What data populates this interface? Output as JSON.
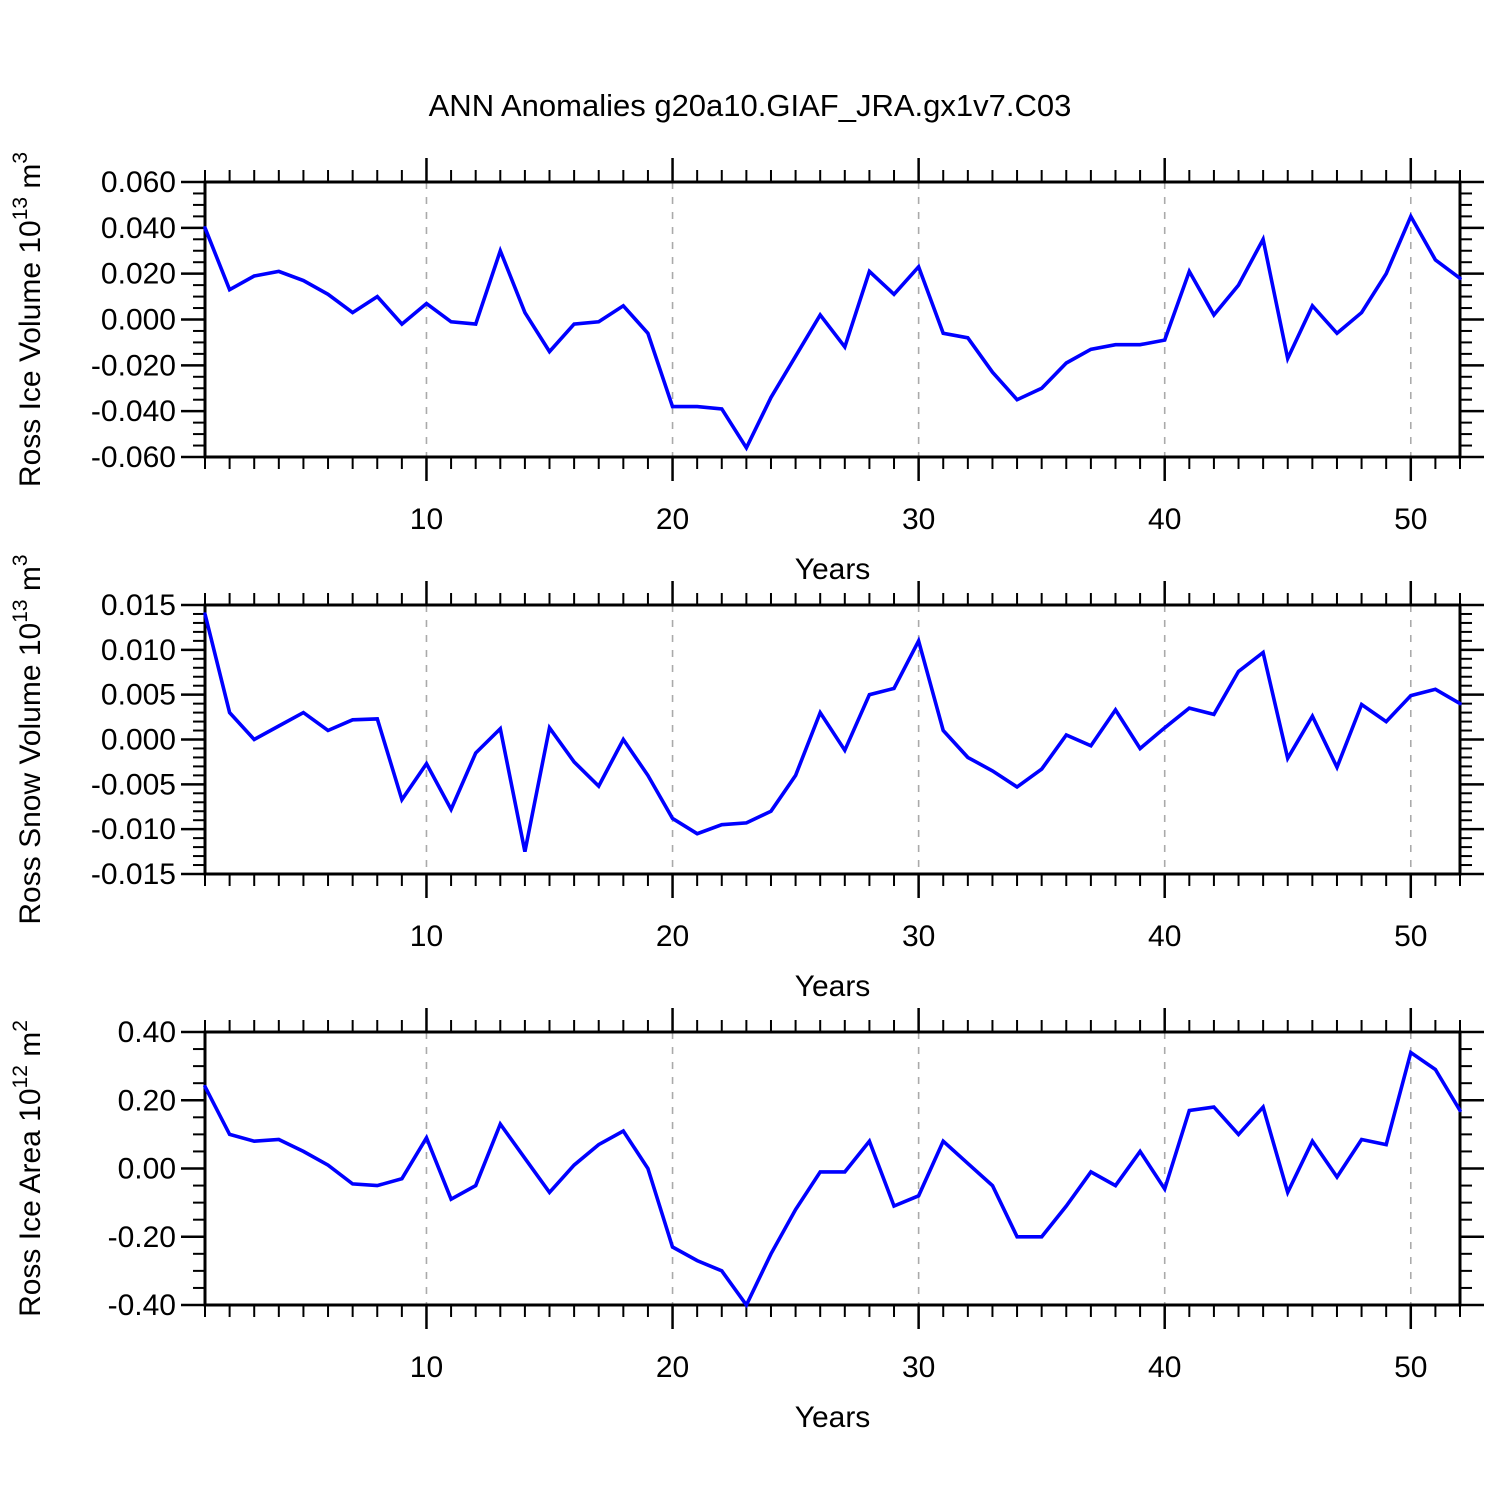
{
  "title": "ANN Anomalies g20a10.GIAF_JRA.gx1v7.C03",
  "xlabel": "Years",
  "style": {
    "line_color": "#0000ff",
    "axis_color": "#000000",
    "grid_color": "#aaaaaa"
  },
  "chart_data": [
    {
      "type": "line",
      "name": "ross-ice-volume",
      "ylabel_parts": [
        {
          "t": "Ross Ice Volume 10"
        },
        {
          "t": "13",
          "sup": true
        },
        {
          "t": " m"
        },
        {
          "t": "3",
          "sup": true
        }
      ],
      "xlabel": "Years",
      "x_start": 1,
      "x_end": 52,
      "x_step": 1,
      "x_major": [
        10,
        20,
        30,
        40,
        50
      ],
      "ylim": [
        -0.06,
        0.06
      ],
      "y_major": [
        0.06,
        0.04,
        0.02,
        0.0,
        -0.02,
        -0.04,
        -0.06
      ],
      "y_minor_step": 0.005,
      "y_decimals": 3,
      "grid": "dashed-vertical-at-x-majors",
      "values": [
        0.04,
        0.013,
        0.019,
        0.021,
        0.017,
        0.011,
        0.003,
        0.01,
        -0.002,
        0.007,
        -0.001,
        -0.002,
        0.03,
        0.003,
        -0.014,
        -0.002,
        -0.001,
        0.006,
        -0.006,
        -0.038,
        -0.038,
        -0.039,
        -0.056,
        -0.034,
        -0.016,
        0.002,
        -0.012,
        0.021,
        0.011,
        0.023,
        -0.006,
        -0.008,
        -0.023,
        -0.035,
        -0.03,
        -0.019,
        -0.013,
        -0.011,
        -0.011,
        -0.009,
        0.021,
        0.002,
        0.015,
        0.035,
        -0.017,
        0.006,
        -0.006,
        0.003,
        0.02,
        0.045,
        0.026,
        0.018
      ]
    },
    {
      "type": "line",
      "name": "ross-snow-volume",
      "ylabel_parts": [
        {
          "t": "Ross Snow Volume 10"
        },
        {
          "t": "13",
          "sup": true
        },
        {
          "t": " m"
        },
        {
          "t": "3",
          "sup": true
        }
      ],
      "xlabel": "Years",
      "x_start": 1,
      "x_end": 52,
      "x_step": 1,
      "x_major": [
        10,
        20,
        30,
        40,
        50
      ],
      "ylim": [
        -0.015,
        0.015
      ],
      "y_major": [
        0.015,
        0.01,
        0.005,
        0.0,
        -0.005,
        -0.01,
        -0.015
      ],
      "y_minor_step": 0.001,
      "y_decimals": 3,
      "grid": "dashed-vertical-at-x-majors",
      "values": [
        0.014,
        0.003,
        0.0,
        0.0015,
        0.003,
        0.001,
        0.0022,
        0.0023,
        -0.0067,
        -0.0027,
        -0.0078,
        -0.0015,
        0.0012,
        -0.0125,
        0.0013,
        -0.0025,
        -0.0052,
        0.0,
        -0.004,
        -0.0088,
        -0.0105,
        -0.0095,
        -0.0093,
        -0.008,
        -0.004,
        0.003,
        -0.0012,
        0.005,
        0.0057,
        0.011,
        0.001,
        -0.002,
        -0.0035,
        -0.0053,
        -0.0033,
        0.0005,
        -0.0007,
        0.0033,
        -0.001,
        0.0013,
        0.0035,
        0.0028,
        0.0076,
        0.0097,
        -0.0021,
        0.0026,
        -0.0031,
        0.0039,
        0.002,
        0.0049,
        0.0056,
        0.004
      ]
    },
    {
      "type": "line",
      "name": "ross-ice-area",
      "ylabel_parts": [
        {
          "t": "Ross Ice Area 10"
        },
        {
          "t": "12",
          "sup": true
        },
        {
          "t": " m"
        },
        {
          "t": "2",
          "sup": true
        }
      ],
      "xlabel": "Years",
      "x_start": 1,
      "x_end": 52,
      "x_step": 1,
      "x_major": [
        10,
        20,
        30,
        40,
        50
      ],
      "ylim": [
        -0.4,
        0.4
      ],
      "y_major": [
        0.4,
        0.2,
        0.0,
        -0.2,
        -0.4
      ],
      "y_minor_step": 0.05,
      "y_decimals": 2,
      "grid": "dashed-vertical-at-x-majors",
      "values": [
        0.24,
        0.1,
        0.08,
        0.085,
        0.05,
        0.01,
        -0.045,
        -0.05,
        -0.03,
        0.09,
        -0.09,
        -0.05,
        0.13,
        0.03,
        -0.07,
        0.01,
        0.07,
        0.11,
        0.0,
        -0.23,
        -0.27,
        -0.3,
        -0.4,
        -0.25,
        -0.12,
        -0.01,
        -0.01,
        0.08,
        -0.11,
        -0.08,
        0.08,
        0.015,
        -0.05,
        -0.2,
        -0.2,
        -0.11,
        -0.01,
        -0.05,
        0.05,
        -0.06,
        0.17,
        0.18,
        0.1,
        0.18,
        -0.07,
        0.08,
        -0.025,
        0.085,
        0.07,
        0.34,
        0.29,
        0.17
      ]
    }
  ]
}
